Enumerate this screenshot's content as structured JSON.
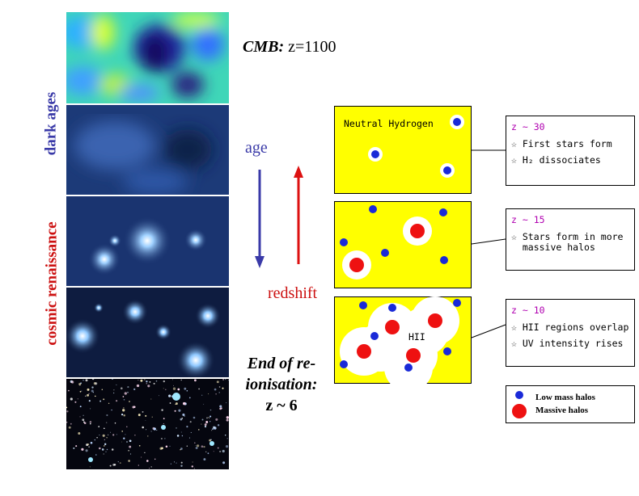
{
  "left_labels": {
    "top": "dark ages",
    "bottom": "cosmic renaissance"
  },
  "cmb_label": {
    "prefix": "CMB:",
    "value": "z=1100"
  },
  "age_label": "age",
  "redshift_label": "redshift",
  "end_label": [
    "End of re-",
    "ionisation:",
    "z ~ 6"
  ],
  "panels": [
    {
      "title": "Neutral Hydrogen",
      "z": "z ~ 30",
      "lines": [
        "First stars form",
        "H₂ dissociates"
      ]
    },
    {
      "title": "",
      "z": "z ~ 15",
      "lines": [
        "Stars form in more massive halos"
      ]
    },
    {
      "title": "HII",
      "z": "z ~ 10",
      "lines": [
        "HII regions overlap",
        "UV intensity rises"
      ]
    }
  ],
  "legend": {
    "low": "Low mass halos",
    "massive": "Massive halos"
  },
  "colors": {
    "yellow": "#ffff00",
    "blue_halo": "#1a2ad8",
    "red_halo": "#ee1111",
    "purple_label": "#3a3aa8",
    "red_label": "#cc1111",
    "z_magenta": "#b000b0"
  }
}
